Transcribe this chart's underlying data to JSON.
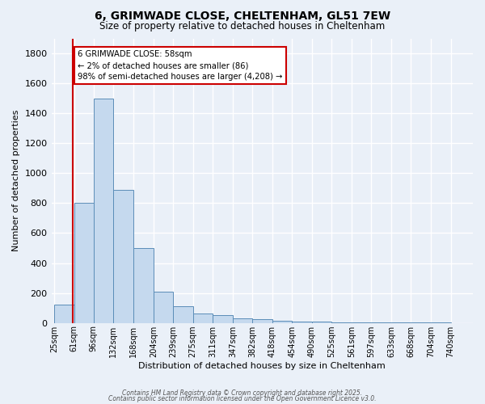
{
  "title_line1": "6, GRIMWADE CLOSE, CHELTENHAM, GL51 7EW",
  "title_line2": "Size of property relative to detached houses in Cheltenham",
  "xlabel": "Distribution of detached houses by size in Cheltenham",
  "ylabel": "Number of detached properties",
  "bar_values": [
    120,
    800,
    1500,
    890,
    500,
    210,
    110,
    65,
    50,
    30,
    25,
    15,
    10,
    8,
    5,
    3,
    2,
    1,
    1,
    1
  ],
  "bar_color": "#c5d9ee",
  "bar_edge_color": "#5b8db8",
  "background_color": "#eaf0f8",
  "grid_color": "#ffffff",
  "ylim_max": 1900,
  "yticks": [
    0,
    200,
    400,
    600,
    800,
    1000,
    1200,
    1400,
    1600,
    1800
  ],
  "property_line_color": "#cc0000",
  "annotation_title": "6 GRIMWADE CLOSE: 58sqm",
  "annotation_line1": "← 2% of detached houses are smaller (86)",
  "annotation_line2": "98% of semi-detached houses are larger (4,208) →",
  "annotation_box_color": "#ffffff",
  "annotation_box_edge": "#cc0000",
  "footer_line1": "Contains HM Land Registry data © Crown copyright and database right 2025.",
  "footer_line2": "Contains public sector information licensed under the Open Government Licence v3.0.",
  "bin_starts": [
    25,
    61,
    96,
    132,
    168,
    204,
    239,
    275,
    311,
    347,
    382,
    418,
    454,
    490,
    525,
    561,
    597,
    633,
    668,
    704,
    740
  ],
  "xtick_labels": [
    "25sqm",
    "61sqm",
    "96sqm",
    "132sqm",
    "168sqm",
    "204sqm",
    "239sqm",
    "275sqm",
    "311sqm",
    "347sqm",
    "382sqm",
    "418sqm",
    "454sqm",
    "490sqm",
    "525sqm",
    "561sqm",
    "597sqm",
    "633sqm",
    "668sqm",
    "704sqm",
    "740sqm"
  ],
  "property_sqm": 58
}
